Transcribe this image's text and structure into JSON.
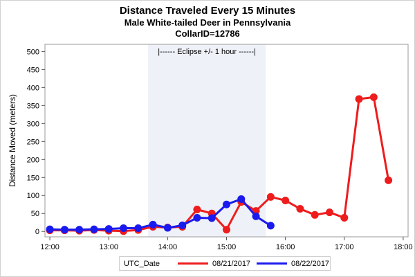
{
  "chart_data": {
    "type": "line",
    "title": "Distance Traveled Every 15 Minutes",
    "subtitle": "Male White-tailed Deer in Pennsylvania",
    "subtitle2": "CollarID=12786",
    "xlabel": "",
    "ylabel": "Distance Moved (meters)",
    "x_ticks": [
      "12:00",
      "13:00",
      "14:00",
      "15:00",
      "16:00",
      "17:00",
      "18:00"
    ],
    "y_ticks": [
      0,
      50,
      100,
      150,
      200,
      250,
      300,
      350,
      400,
      450,
      500
    ],
    "xlim": [
      "11:55",
      "18:05"
    ],
    "ylim": [
      -15,
      520
    ],
    "grid": false,
    "legend_position": "bottom",
    "legend_title": "UTC_Date",
    "band": {
      "x_start": "13:40",
      "x_end": "15:40",
      "label": "|------  Eclipse +/- 1 hour  ------|",
      "color": "#eef1f8"
    },
    "series": [
      {
        "name": "08/21/2017",
        "color": "#ee1c1c",
        "x": [
          "12:00",
          "12:15",
          "12:30",
          "12:45",
          "13:00",
          "13:15",
          "13:30",
          "13:45",
          "14:00",
          "14:15",
          "14:30",
          "14:45",
          "15:00",
          "15:15",
          "15:30",
          "15:45",
          "16:00",
          "16:15",
          "16:30",
          "16:45",
          "17:00",
          "17:15",
          "17:30",
          "17:45"
        ],
        "values": [
          3,
          3,
          2,
          4,
          2,
          1,
          4,
          13,
          11,
          13,
          61,
          50,
          5,
          82,
          57,
          96,
          86,
          63,
          46,
          53,
          38,
          368,
          373,
          142
        ]
      },
      {
        "name": "08/22/2017",
        "color": "#1a1aee",
        "x": [
          "12:00",
          "12:15",
          "12:30",
          "12:45",
          "13:00",
          "13:15",
          "13:30",
          "13:45",
          "14:00",
          "14:15",
          "14:30",
          "14:45",
          "15:00",
          "15:15",
          "15:30",
          "15:45"
        ],
        "values": [
          6,
          5,
          5,
          6,
          7,
          9,
          9,
          19,
          10,
          17,
          38,
          37,
          75,
          90,
          42,
          16
        ]
      }
    ]
  }
}
